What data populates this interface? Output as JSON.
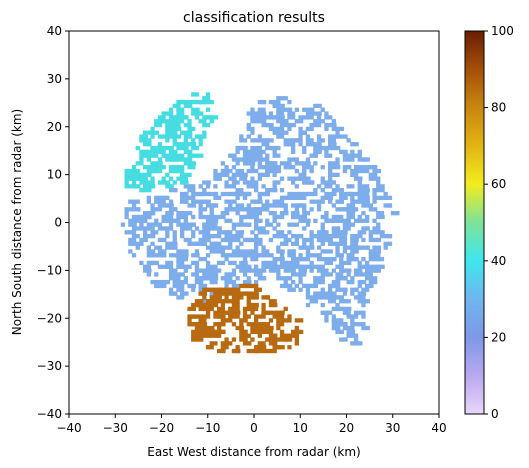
{
  "chart_data": [
    {
      "type": "heatmap",
      "title": "classification results",
      "xlabel": "East West distance from radar (km)",
      "ylabel": "North South distance from radar (km)",
      "xlim": [
        -40,
        40
      ],
      "ylim": [
        -40,
        40
      ],
      "xticks": [
        -40,
        -30,
        -20,
        -10,
        0,
        10,
        20,
        30,
        40
      ],
      "yticks": [
        -40,
        -30,
        -20,
        -10,
        0,
        10,
        20,
        30,
        40
      ],
      "x_tick_labels": [
        "−40",
        "−30",
        "−20",
        "−10",
        "0",
        "10",
        "20",
        "30",
        "40"
      ],
      "y_tick_labels": [
        "−40",
        "−30",
        "−20",
        "−10",
        "0",
        "10",
        "20",
        "30",
        "40"
      ],
      "grid": false,
      "regions": [
        {
          "class_value": 16,
          "color": "#7dadea",
          "polygon": [
            [
              -29,
              -1
            ],
            [
              -27,
              -9
            ],
            [
              -20,
              -15
            ],
            [
              -12,
              -18
            ],
            [
              -4,
              -14
            ],
            [
              3,
              -12
            ],
            [
              9,
              -16
            ],
            [
              14,
              -20
            ],
            [
              17,
              -23
            ],
            [
              20,
              -27
            ],
            [
              23,
              -25
            ],
            [
              24,
              -15
            ],
            [
              27,
              -9
            ],
            [
              29,
              -3
            ],
            [
              30,
              1
            ],
            [
              28,
              6
            ],
            [
              25,
              12
            ],
            [
              20,
              18
            ],
            [
              14,
              24
            ],
            [
              6,
              26
            ],
            [
              0,
              25
            ],
            [
              -2,
              22
            ],
            [
              -4,
              16
            ],
            [
              -8,
              12
            ],
            [
              -12,
              8
            ],
            [
              -20,
              6
            ],
            [
              -28,
              4
            ]
          ],
          "density": 0.45
        },
        {
          "class_value": 44,
          "color": "#46dde2",
          "polygon": [
            [
              -29,
              7
            ],
            [
              -28,
              12
            ],
            [
              -25,
              18
            ],
            [
              -20,
              23
            ],
            [
              -15,
              26
            ],
            [
              -10,
              28
            ],
            [
              -9,
              22
            ],
            [
              -11,
              17
            ],
            [
              -13,
              11
            ],
            [
              -17,
              7
            ],
            [
              -24,
              6
            ]
          ],
          "density": 0.5
        },
        {
          "class_value": 80,
          "color": "#b86a10",
          "polygon": [
            [
              -14,
              -16
            ],
            [
              -11,
              -14
            ],
            [
              -6,
              -14
            ],
            [
              0,
              -13
            ],
            [
              2,
              -15
            ],
            [
              6,
              -18
            ],
            [
              9,
              -21
            ],
            [
              9,
              -26
            ],
            [
              4,
              -28
            ],
            [
              -2,
              -28
            ],
            [
              -10,
              -27
            ],
            [
              -14,
              -25
            ],
            [
              -15,
              -19
            ]
          ],
          "density": 0.55
        }
      ],
      "colorbar": {
        "range": [
          0,
          100
        ],
        "ticks": [
          0,
          20,
          40,
          60,
          80,
          100
        ],
        "tick_labels": [
          "0",
          "20",
          "40",
          "60",
          "80",
          "100"
        ],
        "stops": [
          {
            "v": 0,
            "color": "#e8d6f8"
          },
          {
            "v": 10,
            "color": "#b9a8f0"
          },
          {
            "v": 20,
            "color": "#7f98e6"
          },
          {
            "v": 30,
            "color": "#6fb6ee"
          },
          {
            "v": 40,
            "color": "#3ee6ee"
          },
          {
            "v": 50,
            "color": "#7de39a"
          },
          {
            "v": 60,
            "color": "#f2ec1e"
          },
          {
            "v": 70,
            "color": "#e2b414"
          },
          {
            "v": 80,
            "color": "#c98610"
          },
          {
            "v": 90,
            "color": "#a4500a"
          },
          {
            "v": 100,
            "color": "#6a1e02"
          }
        ]
      }
    }
  ]
}
